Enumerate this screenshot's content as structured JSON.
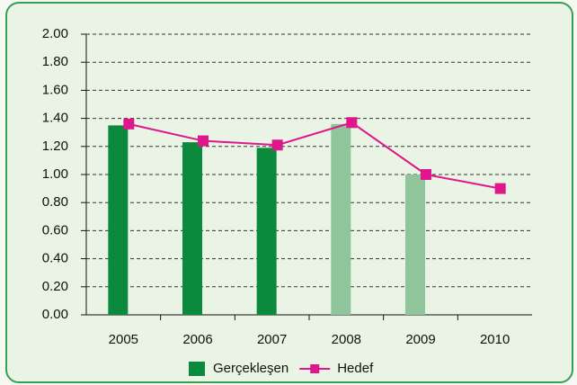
{
  "chart_data": {
    "type": "bar",
    "categories": [
      "2005",
      "2006",
      "2007",
      "2008",
      "2009",
      "2010"
    ],
    "series": [
      {
        "name": "Gerçekleşen",
        "type": "bar",
        "color": "#0b8a3e",
        "colors": [
          "#0b8a3e",
          "#0b8a3e",
          "#0b8a3e",
          "#90c59c",
          "#90c59c",
          "#90c59c"
        ],
        "values": [
          1.35,
          1.23,
          1.19,
          1.36,
          1.0,
          null
        ]
      },
      {
        "name": "Hedef",
        "type": "line",
        "color": "#e0168c",
        "values": [
          1.36,
          1.24,
          1.21,
          1.37,
          1.0,
          0.9
        ]
      }
    ],
    "ylim": [
      0,
      2
    ],
    "yticks": [
      {
        "value": 0,
        "label": "0.00"
      },
      {
        "value": 0.2,
        "label": "0.20"
      },
      {
        "value": 0.4,
        "label": "0.40"
      },
      {
        "value": 0.6,
        "label": "0.60"
      },
      {
        "value": 0.8,
        "label": "0.80"
      },
      {
        "value": 1,
        "label": "1.00"
      },
      {
        "value": 1.2,
        "label": "1.20"
      },
      {
        "value": 1.4,
        "label": "1.40"
      },
      {
        "value": 1.6,
        "label": "1.60"
      },
      {
        "value": 1.8,
        "label": "1.80"
      },
      {
        "value": 2,
        "label": "2.00"
      }
    ],
    "grid": true,
    "legend": "bottom"
  }
}
